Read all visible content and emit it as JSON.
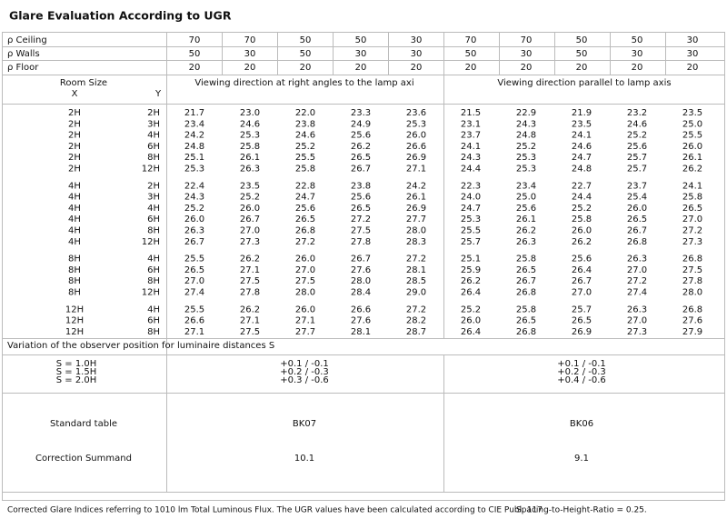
{
  "title": "Glare Evaluation According to UGR",
  "reflectances": [
    {
      "label": "ρ Ceiling",
      "values": [
        "70",
        "70",
        "50",
        "50",
        "30",
        "70",
        "70",
        "50",
        "50",
        "30"
      ]
    },
    {
      "label": "ρ Walls",
      "values": [
        "50",
        "30",
        "50",
        "30",
        "30",
        "50",
        "30",
        "50",
        "30",
        "30"
      ]
    },
    {
      "label": "ρ Floor",
      "values": [
        "20",
        "20",
        "20",
        "20",
        "20",
        "20",
        "20",
        "20",
        "20",
        "20"
      ]
    }
  ],
  "room_size": {
    "label": "Room Size",
    "x": "X",
    "y": "Y"
  },
  "directions": [
    "Viewing direction at right angles to the lamp axi",
    "Viewing direction parallel to lamp axis"
  ],
  "groups": [
    [
      {
        "x": "2H",
        "y": "2H",
        "values": [
          "21.7",
          "23.0",
          "22.0",
          "23.3",
          "23.6",
          "21.5",
          "22.9",
          "21.9",
          "23.2",
          "23.5"
        ]
      },
      {
        "x": "2H",
        "y": "3H",
        "values": [
          "23.4",
          "24.6",
          "23.8",
          "24.9",
          "25.3",
          "23.1",
          "24.3",
          "23.5",
          "24.6",
          "25.0"
        ]
      },
      {
        "x": "2H",
        "y": "4H",
        "values": [
          "24.2",
          "25.3",
          "24.6",
          "25.6",
          "26.0",
          "23.7",
          "24.8",
          "24.1",
          "25.2",
          "25.5"
        ]
      },
      {
        "x": "2H",
        "y": "6H",
        "values": [
          "24.8",
          "25.8",
          "25.2",
          "26.2",
          "26.6",
          "24.1",
          "25.2",
          "24.6",
          "25.6",
          "26.0"
        ]
      },
      {
        "x": "2H",
        "y": "8H",
        "values": [
          "25.1",
          "26.1",
          "25.5",
          "26.5",
          "26.9",
          "24.3",
          "25.3",
          "24.7",
          "25.7",
          "26.1"
        ]
      },
      {
        "x": "2H",
        "y": "12H",
        "values": [
          "25.3",
          "26.3",
          "25.8",
          "26.7",
          "27.1",
          "24.4",
          "25.3",
          "24.8",
          "25.7",
          "26.2"
        ]
      }
    ],
    [
      {
        "x": "4H",
        "y": "2H",
        "values": [
          "22.4",
          "23.5",
          "22.8",
          "23.8",
          "24.2",
          "22.3",
          "23.4",
          "22.7",
          "23.7",
          "24.1"
        ]
      },
      {
        "x": "4H",
        "y": "3H",
        "values": [
          "24.3",
          "25.2",
          "24.7",
          "25.6",
          "26.1",
          "24.0",
          "25.0",
          "24.4",
          "25.4",
          "25.8"
        ]
      },
      {
        "x": "4H",
        "y": "4H",
        "values": [
          "25.2",
          "26.0",
          "25.6",
          "26.5",
          "26.9",
          "24.7",
          "25.6",
          "25.2",
          "26.0",
          "26.5"
        ]
      },
      {
        "x": "4H",
        "y": "6H",
        "values": [
          "26.0",
          "26.7",
          "26.5",
          "27.2",
          "27.7",
          "25.3",
          "26.1",
          "25.8",
          "26.5",
          "27.0"
        ]
      },
      {
        "x": "4H",
        "y": "8H",
        "values": [
          "26.3",
          "27.0",
          "26.8",
          "27.5",
          "28.0",
          "25.5",
          "26.2",
          "26.0",
          "26.7",
          "27.2"
        ]
      },
      {
        "x": "4H",
        "y": "12H",
        "values": [
          "26.7",
          "27.3",
          "27.2",
          "27.8",
          "28.3",
          "25.7",
          "26.3",
          "26.2",
          "26.8",
          "27.3"
        ]
      }
    ],
    [
      {
        "x": "8H",
        "y": "4H",
        "values": [
          "25.5",
          "26.2",
          "26.0",
          "26.7",
          "27.2",
          "25.1",
          "25.8",
          "25.6",
          "26.3",
          "26.8"
        ]
      },
      {
        "x": "8H",
        "y": "6H",
        "values": [
          "26.5",
          "27.1",
          "27.0",
          "27.6",
          "28.1",
          "25.9",
          "26.5",
          "26.4",
          "27.0",
          "27.5"
        ]
      },
      {
        "x": "8H",
        "y": "8H",
        "values": [
          "27.0",
          "27.5",
          "27.5",
          "28.0",
          "28.5",
          "26.2",
          "26.7",
          "26.7",
          "27.2",
          "27.8"
        ]
      },
      {
        "x": "8H",
        "y": "12H",
        "values": [
          "27.4",
          "27.8",
          "28.0",
          "28.4",
          "29.0",
          "26.4",
          "26.8",
          "27.0",
          "27.4",
          "28.0"
        ]
      }
    ],
    [
      {
        "x": "12H",
        "y": "4H",
        "values": [
          "25.5",
          "26.2",
          "26.0",
          "26.6",
          "27.2",
          "25.2",
          "25.8",
          "25.7",
          "26.3",
          "26.8"
        ]
      },
      {
        "x": "12H",
        "y": "6H",
        "values": [
          "26.6",
          "27.1",
          "27.1",
          "27.6",
          "28.2",
          "26.0",
          "26.5",
          "26.5",
          "27.0",
          "27.6"
        ]
      },
      {
        "x": "12H",
        "y": "8H",
        "values": [
          "27.1",
          "27.5",
          "27.7",
          "28.1",
          "28.7",
          "26.4",
          "26.8",
          "26.9",
          "27.3",
          "27.9"
        ]
      }
    ]
  ],
  "variation": {
    "title": "Variation of the observer position for luminaire distances S",
    "rows": [
      "S = 1.0H",
      "S = 1.5H",
      "S = 2.0H"
    ],
    "perpendicular": [
      "+0.1 / -0.1",
      "+0.2 / -0.3",
      "+0.3 / -0.6"
    ],
    "parallel": [
      "+0.1 / -0.1",
      "+0.2 / -0.3",
      "+0.4 / -0.6"
    ]
  },
  "standard_table": {
    "label": "Standard table",
    "perpendicular": "BK07",
    "parallel": "BK06"
  },
  "correction": {
    "label": "Correction Summand",
    "perpendicular": "10.1",
    "parallel": "9.1"
  },
  "footer": [
    "Corrected Glare Indices referring to 1010 lm Total Luminous Flux. The UGR values have been calculated according to CIE Publ. 117",
    "Spacing-to-Height-Ratio = 0.25."
  ]
}
